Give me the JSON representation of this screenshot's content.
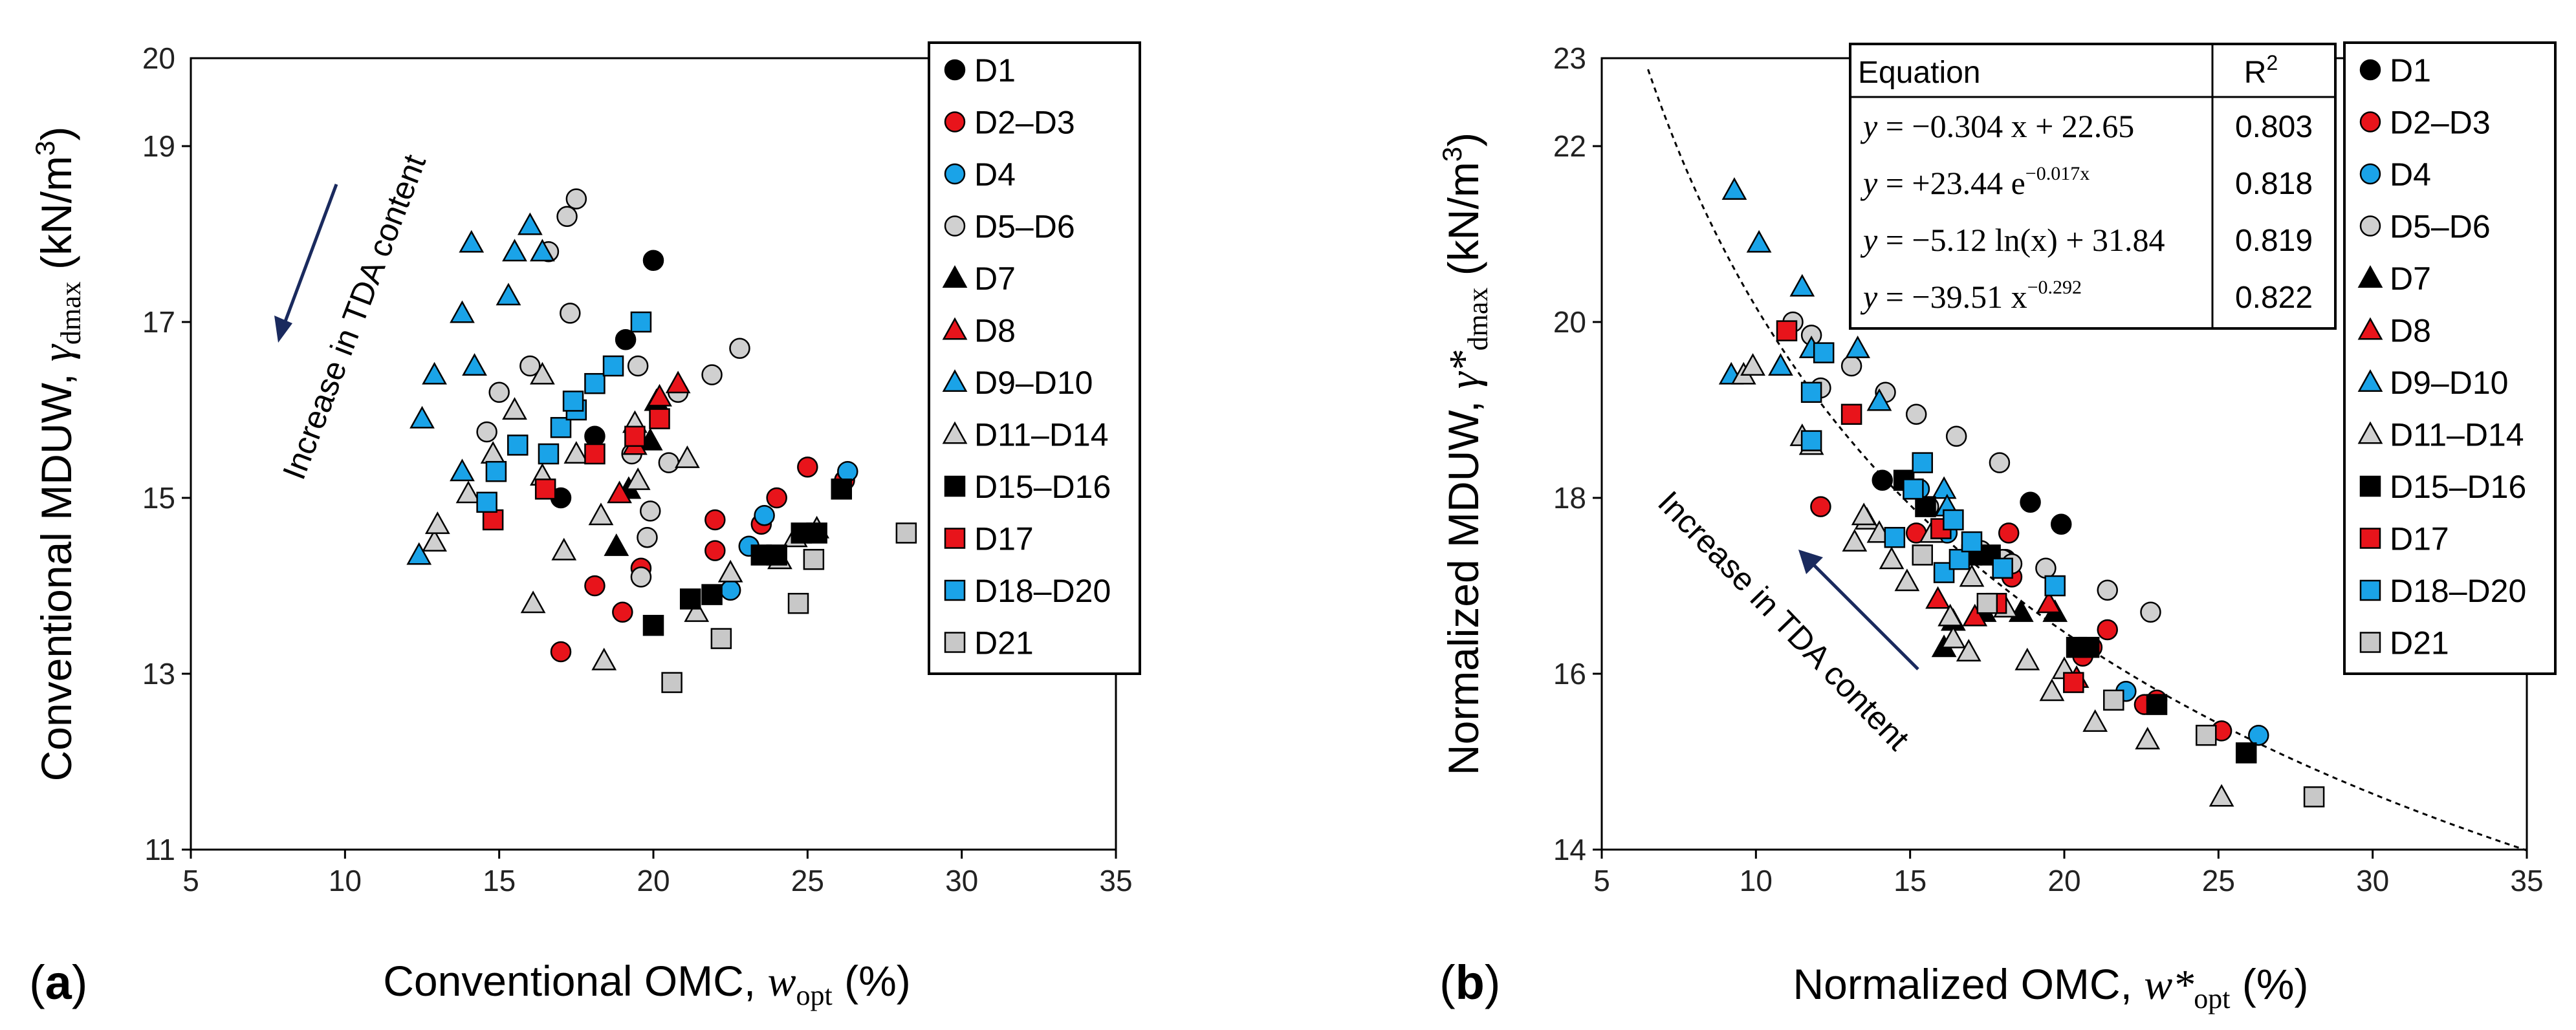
{
  "chart_data": [
    {
      "type": "scatter",
      "panel_label": "a",
      "title": "",
      "xlabel_main": "Conventional OMC, ",
      "xlabel_sym": "w",
      "xlabel_sub": "opt",
      "xlabel_unit": " (%)",
      "ylabel_main": "Conventional MDUW, ",
      "ylabel_sym": "γ",
      "ylabel_sub": "dmax",
      "ylabel_unit": " (kN/m",
      "ylabel_sup": "3",
      "ylabel_close": ")",
      "xlim": [
        5,
        35
      ],
      "ylim": [
        11,
        20
      ],
      "xticks": [
        "5",
        "10",
        "15",
        "20",
        "25",
        "30",
        "35"
      ],
      "yticks": [
        "11",
        "13",
        "15",
        "17",
        "19",
        "20"
      ],
      "yticks_values": [
        11,
        13,
        15,
        17,
        19,
        20
      ],
      "annotation": "Increase in TDA content",
      "series": [
        {
          "name": "D1",
          "marker": "circle",
          "color": "#000000",
          "points": [
            [
              19.1,
              16.8
            ],
            [
              20.0,
              17.7
            ],
            [
              18.1,
              15.7
            ],
            [
              17.0,
              15.0
            ]
          ]
        },
        {
          "name": "D2–D3",
          "marker": "circle",
          "color": "#e8141b",
          "points": [
            [
              17.0,
              13.25
            ],
            [
              18.1,
              14.0
            ],
            [
              19.0,
              13.7
            ],
            [
              19.6,
              14.2
            ],
            [
              22.0,
              14.4
            ],
            [
              22.0,
              14.75
            ],
            [
              23.5,
              14.7
            ],
            [
              24.0,
              15.0
            ],
            [
              25.0,
              15.35
            ],
            [
              26.2,
              15.2
            ]
          ]
        },
        {
          "name": "D4",
          "marker": "circle",
          "color": "#1aa3e8",
          "points": [
            [
              23.1,
              14.45
            ],
            [
              23.6,
              14.8
            ],
            [
              22.5,
              13.95
            ],
            [
              26.3,
              15.3
            ]
          ]
        },
        {
          "name": "D5–D6",
          "marker": "circle",
          "color": "#d0d0d0",
          "points": [
            [
              17.5,
              18.4
            ],
            [
              17.2,
              18.2
            ],
            [
              16.6,
              17.8
            ],
            [
              17.3,
              17.1
            ],
            [
              16.0,
              16.5
            ],
            [
              15.0,
              16.2
            ],
            [
              14.6,
              15.75
            ],
            [
              19.5,
              16.5
            ],
            [
              20.8,
              16.2
            ],
            [
              21.9,
              16.4
            ],
            [
              22.8,
              16.7
            ],
            [
              19.3,
              15.5
            ],
            [
              20.5,
              15.4
            ],
            [
              19.9,
              14.85
            ],
            [
              19.6,
              14.1
            ],
            [
              19.8,
              14.55
            ]
          ]
        },
        {
          "name": "D7",
          "marker": "triangle",
          "color": "#000000",
          "points": [
            [
              18.8,
              14.45
            ],
            [
              19.2,
              15.1
            ],
            [
              19.9,
              15.65
            ],
            [
              20.1,
              16.1
            ]
          ]
        },
        {
          "name": "D8",
          "marker": "triangle",
          "color": "#e8141b",
          "points": [
            [
              18.9,
              15.05
            ],
            [
              19.4,
              15.6
            ],
            [
              20.2,
              16.15
            ],
            [
              20.8,
              16.3
            ]
          ]
        },
        {
          "name": "D9–D10",
          "marker": "triangle",
          "color": "#1aa3e8",
          "points": [
            [
              12.4,
              14.35
            ],
            [
              12.5,
              15.9
            ],
            [
              12.9,
              16.4
            ],
            [
              13.8,
              17.1
            ],
            [
              14.1,
              17.9
            ],
            [
              14.2,
              16.5
            ],
            [
              13.8,
              15.3
            ],
            [
              15.3,
              17.3
            ],
            [
              15.5,
              17.8
            ],
            [
              16.0,
              18.1
            ],
            [
              16.4,
              17.8
            ]
          ]
        },
        {
          "name": "D11–D14",
          "marker": "triangle",
          "color": "#d0d0d0",
          "points": [
            [
              12.9,
              14.5
            ],
            [
              13.0,
              14.7
            ],
            [
              14.0,
              15.05
            ],
            [
              14.8,
              15.5
            ],
            [
              15.5,
              16.0
            ],
            [
              16.4,
              16.4
            ],
            [
              16.4,
              15.25
            ],
            [
              16.1,
              13.8
            ],
            [
              17.1,
              14.4
            ],
            [
              17.5,
              15.5
            ],
            [
              18.3,
              14.8
            ],
            [
              18.4,
              13.15
            ],
            [
              19.5,
              15.2
            ],
            [
              19.4,
              15.85
            ],
            [
              21.1,
              15.45
            ],
            [
              21.4,
              13.7
            ],
            [
              22.5,
              14.15
            ],
            [
              24.1,
              14.3
            ],
            [
              24.6,
              14.55
            ],
            [
              25.3,
              14.65
            ]
          ]
        },
        {
          "name": "D15–D16",
          "marker": "square",
          "color": "#000000",
          "points": [
            [
              20.0,
              13.55
            ],
            [
              21.2,
              13.85
            ],
            [
              21.9,
              13.9
            ],
            [
              23.5,
              14.35
            ],
            [
              24.0,
              14.35
            ],
            [
              24.8,
              14.6
            ],
            [
              25.3,
              14.6
            ],
            [
              26.1,
              15.1
            ]
          ]
        },
        {
          "name": "D17",
          "marker": "square",
          "color": "#e8141b",
          "points": [
            [
              14.8,
              14.75
            ],
            [
              16.5,
              15.1
            ],
            [
              18.1,
              15.5
            ],
            [
              19.4,
              15.7
            ],
            [
              20.2,
              15.9
            ]
          ]
        },
        {
          "name": "D18–D20",
          "marker": "square",
          "color": "#1aa3e8",
          "points": [
            [
              14.6,
              14.95
            ],
            [
              14.9,
              15.3
            ],
            [
              15.6,
              15.6
            ],
            [
              16.6,
              15.5
            ],
            [
              17.0,
              15.8
            ],
            [
              17.5,
              16.0
            ],
            [
              17.4,
              16.1
            ],
            [
              18.1,
              16.3
            ],
            [
              18.7,
              16.5
            ],
            [
              19.6,
              17.0
            ]
          ]
        },
        {
          "name": "D21",
          "marker": "square",
          "color": "#c8c8c8",
          "points": [
            [
              20.6,
              12.9
            ],
            [
              22.2,
              13.4
            ],
            [
              24.7,
              13.8
            ],
            [
              25.2,
              14.3
            ],
            [
              28.2,
              14.6
            ]
          ]
        }
      ]
    },
    {
      "type": "scatter",
      "panel_label": "b",
      "title": "",
      "xlabel_main": "Normalized OMC, ",
      "xlabel_sym": "w*",
      "xlabel_sub": "opt",
      "xlabel_unit": " (%)",
      "ylabel_main": "Normalized MDUW, ",
      "ylabel_sym": "γ*",
      "ylabel_sub": "dmax",
      "ylabel_unit": " (kN/m",
      "ylabel_sup": "3",
      "ylabel_close": ")",
      "xlim": [
        5,
        35
      ],
      "ylim": [
        14,
        23
      ],
      "xticks": [
        "5",
        "10",
        "15",
        "20",
        "25",
        "30",
        "35"
      ],
      "yticks": [
        "14",
        "16",
        "18",
        "20",
        "22",
        "23"
      ],
      "yticks_values": [
        14,
        16,
        18,
        20,
        22,
        23
      ],
      "annotation": "Increase in TDA content",
      "fit_curve": {
        "a": -39.51,
        "b": -0.292,
        "x_from": 6.5,
        "x_to": 35
      },
      "equation_table": {
        "header_equation": "Equation",
        "header_r2": "R",
        "header_r2_sup": "2",
        "rows": [
          {
            "y": "y",
            "eq": " = −0.304 x + 22.65",
            "r2": "0.803"
          },
          {
            "y": "y",
            "eq": " = +23.44 e",
            "sup": "−0.017x",
            "r2": "0.818"
          },
          {
            "y": "y",
            "eq": " = −5.12 ln(x) + 31.84",
            "r2": "0.819"
          },
          {
            "y": "y",
            "eq": " = −39.51 x",
            "sup": "−0.292",
            "r2": "0.822"
          }
        ]
      },
      "series": [
        {
          "name": "D1",
          "marker": "circle",
          "color": "#000000",
          "points": [
            [
              14.1,
              18.2
            ],
            [
              18.9,
              17.95
            ],
            [
              19.9,
              17.7
            ],
            [
              18.1,
              17.3
            ]
          ]
        },
        {
          "name": "D2–D3",
          "marker": "circle",
          "color": "#e8141b",
          "points": [
            [
              12.1,
              17.9
            ],
            [
              18.2,
              17.6
            ],
            [
              18.3,
              17.1
            ],
            [
              15.2,
              17.6
            ],
            [
              21.4,
              16.5
            ],
            [
              20.6,
              16.2
            ],
            [
              25.1,
              15.35
            ],
            [
              22.6,
              15.65
            ],
            [
              20.9,
              16.3
            ],
            [
              23.0,
              15.7
            ]
          ]
        },
        {
          "name": "D4",
          "marker": "circle",
          "color": "#1aa3e8",
          "points": [
            [
              22.0,
              15.8
            ],
            [
              26.3,
              15.3
            ],
            [
              15.3,
              18.1
            ],
            [
              16.2,
              17.6
            ]
          ]
        },
        {
          "name": "D5–D6",
          "marker": "circle",
          "color": "#d0d0d0",
          "points": [
            [
              11.2,
              20.0
            ],
            [
              11.8,
              19.85
            ],
            [
              13.1,
              19.5
            ],
            [
              14.2,
              19.2
            ],
            [
              15.2,
              18.95
            ],
            [
              16.5,
              18.7
            ],
            [
              17.9,
              18.4
            ],
            [
              18.0,
              17.3
            ],
            [
              19.4,
              17.2
            ],
            [
              21.4,
              16.95
            ],
            [
              22.8,
              16.7
            ],
            [
              15.6,
              17.9
            ],
            [
              17.3,
              17.4
            ],
            [
              18.3,
              17.25
            ],
            [
              12.1,
              19.25
            ]
          ]
        },
        {
          "name": "D7",
          "marker": "triangle",
          "color": "#000000",
          "points": [
            [
              16.1,
              16.3
            ],
            [
              16.4,
              16.6
            ],
            [
              17.4,
              16.7
            ],
            [
              18.6,
              16.7
            ],
            [
              19.7,
              16.7
            ]
          ]
        },
        {
          "name": "D8",
          "marker": "triangle",
          "color": "#e8141b",
          "points": [
            [
              15.9,
              16.85
            ],
            [
              17.1,
              16.65
            ],
            [
              19.5,
              16.8
            ],
            [
              20.4,
              15.95
            ]
          ]
        },
        {
          "name": "D9–D10",
          "marker": "triangle",
          "color": "#1aa3e8",
          "points": [
            [
              9.3,
              21.5
            ],
            [
              10.1,
              20.9
            ],
            [
              9.2,
              19.4
            ],
            [
              10.8,
              19.5
            ],
            [
              11.5,
              20.4
            ],
            [
              11.8,
              19.7
            ],
            [
              13.3,
              19.7
            ],
            [
              14.0,
              19.1
            ],
            [
              16.1,
              18.1
            ],
            [
              16.2,
              17.9
            ]
          ]
        },
        {
          "name": "D11–D14",
          "marker": "triangle",
          "color": "#d0d0d0",
          "points": [
            [
              9.6,
              19.4
            ],
            [
              9.9,
              19.5
            ],
            [
              11.5,
              18.7
            ],
            [
              11.8,
              18.6
            ],
            [
              13.2,
              17.5
            ],
            [
              13.6,
              17.75
            ],
            [
              14.0,
              17.6
            ],
            [
              14.4,
              17.3
            ],
            [
              14.9,
              17.05
            ],
            [
              15.7,
              17.6
            ],
            [
              16.3,
              16.65
            ],
            [
              16.4,
              16.4
            ],
            [
              16.9,
              16.25
            ],
            [
              17.0,
              17.1
            ],
            [
              18.1,
              16.75
            ],
            [
              18.8,
              16.15
            ],
            [
              19.6,
              15.8
            ],
            [
              20.0,
              16.05
            ],
            [
              21.0,
              15.45
            ],
            [
              22.7,
              15.25
            ],
            [
              25.1,
              14.6
            ],
            [
              13.5,
              17.8
            ]
          ]
        },
        {
          "name": "D15–D16",
          "marker": "square",
          "color": "#000000",
          "points": [
            [
              14.8,
              18.2
            ],
            [
              15.5,
              17.9
            ],
            [
              17.0,
              17.35
            ],
            [
              17.6,
              17.35
            ],
            [
              20.4,
              16.3
            ],
            [
              20.8,
              16.3
            ],
            [
              23.0,
              15.65
            ],
            [
              25.9,
              15.1
            ]
          ]
        },
        {
          "name": "D17",
          "marker": "square",
          "color": "#e8141b",
          "points": [
            [
              11.0,
              19.9
            ],
            [
              13.1,
              18.95
            ],
            [
              16.0,
              17.65
            ],
            [
              17.8,
              16.8
            ],
            [
              20.3,
              15.9
            ]
          ]
        },
        {
          "name": "D18–D20",
          "marker": "square",
          "color": "#1aa3e8",
          "points": [
            [
              11.8,
              19.2
            ],
            [
              12.2,
              19.65
            ],
            [
              11.8,
              18.65
            ],
            [
              14.5,
              17.55
            ],
            [
              15.1,
              18.1
            ],
            [
              15.4,
              18.4
            ],
            [
              16.1,
              17.15
            ],
            [
              16.6,
              17.3
            ],
            [
              17.0,
              17.5
            ],
            [
              18.0,
              17.2
            ],
            [
              19.7,
              17.0
            ],
            [
              16.4,
              17.75
            ]
          ]
        },
        {
          "name": "D21",
          "marker": "square",
          "color": "#c8c8c8",
          "points": [
            [
              15.4,
              17.35
            ],
            [
              17.5,
              16.8
            ],
            [
              21.6,
              15.7
            ],
            [
              24.6,
              15.3
            ],
            [
              28.1,
              14.6
            ]
          ]
        }
      ]
    }
  ]
}
